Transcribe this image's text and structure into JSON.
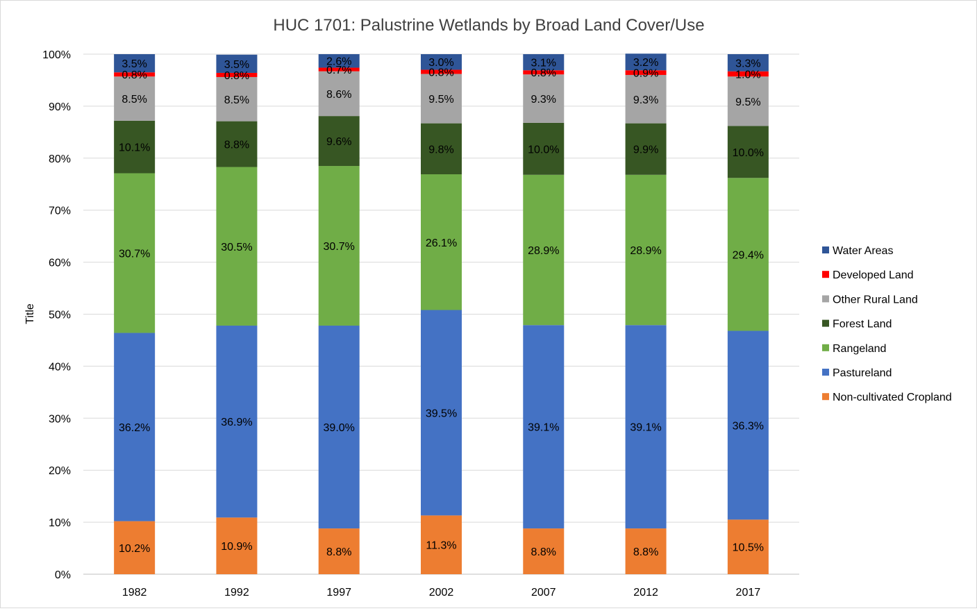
{
  "chart_data": {
    "type": "bar",
    "stacked": true,
    "percent": true,
    "title": "HUC 1701: Palustrine Wetlands by Broad Land Cover/Use",
    "xlabel": "",
    "ylabel": "Title",
    "ylim": [
      0,
      100
    ],
    "yticks": [
      "0%",
      "10%",
      "20%",
      "30%",
      "40%",
      "50%",
      "60%",
      "70%",
      "80%",
      "90%",
      "100%"
    ],
    "grid": true,
    "legend_position": "right",
    "categories": [
      "1982",
      "1992",
      "1997",
      "2002",
      "2007",
      "2012",
      "2017"
    ],
    "series": [
      {
        "name": "Non-cultivated Cropland",
        "color": "#ED7D31",
        "values": [
          10.2,
          10.9,
          8.8,
          11.3,
          8.8,
          8.8,
          10.5
        ],
        "labels": [
          "10.2%",
          "10.9%",
          "8.8%",
          "11.3%",
          "8.8%",
          "8.8%",
          "10.5%"
        ]
      },
      {
        "name": "Pastureland",
        "color": "#4472C4",
        "values": [
          36.2,
          36.9,
          39.0,
          39.5,
          39.1,
          39.1,
          36.3
        ],
        "labels": [
          "36.2%",
          "36.9%",
          "39.0%",
          "39.5%",
          "39.1%",
          "39.1%",
          "36.3%"
        ]
      },
      {
        "name": "Rangeland",
        "color": "#70AD47",
        "values": [
          30.7,
          30.5,
          30.7,
          26.1,
          28.9,
          28.9,
          29.4
        ],
        "labels": [
          "30.7%",
          "30.5%",
          "30.7%",
          "26.1%",
          "28.9%",
          "28.9%",
          "29.4%"
        ]
      },
      {
        "name": "Forest Land",
        "color": "#375623",
        "values": [
          10.1,
          8.8,
          9.6,
          9.8,
          10.0,
          9.9,
          10.0
        ],
        "labels": [
          "10.1%",
          "8.8%",
          "9.6%",
          "9.8%",
          "10.0%",
          "9.9%",
          "10.0%"
        ]
      },
      {
        "name": "Other Rural Land",
        "color": "#A5A5A5",
        "values": [
          8.5,
          8.5,
          8.6,
          9.5,
          9.3,
          9.3,
          9.5
        ],
        "labels": [
          "8.5%",
          "8.5%",
          "8.6%",
          "9.5%",
          "9.3%",
          "9.3%",
          "9.5%"
        ]
      },
      {
        "name": "Developed Land",
        "color": "#FF0000",
        "values": [
          0.8,
          0.8,
          0.7,
          0.8,
          0.8,
          0.9,
          1.0
        ],
        "labels": [
          "0.8%",
          "0.8%",
          "0.7%",
          "0.8%",
          "0.8%",
          "0.9%",
          "1.0%"
        ]
      },
      {
        "name": "Water Areas",
        "color": "#2F5597",
        "values": [
          3.5,
          3.5,
          2.6,
          3.0,
          3.1,
          3.2,
          3.3
        ],
        "labels": [
          "3.5%",
          "3.5%",
          "2.6%",
          "3.0%",
          "3.1%",
          "3.2%",
          "3.3%"
        ]
      }
    ]
  }
}
